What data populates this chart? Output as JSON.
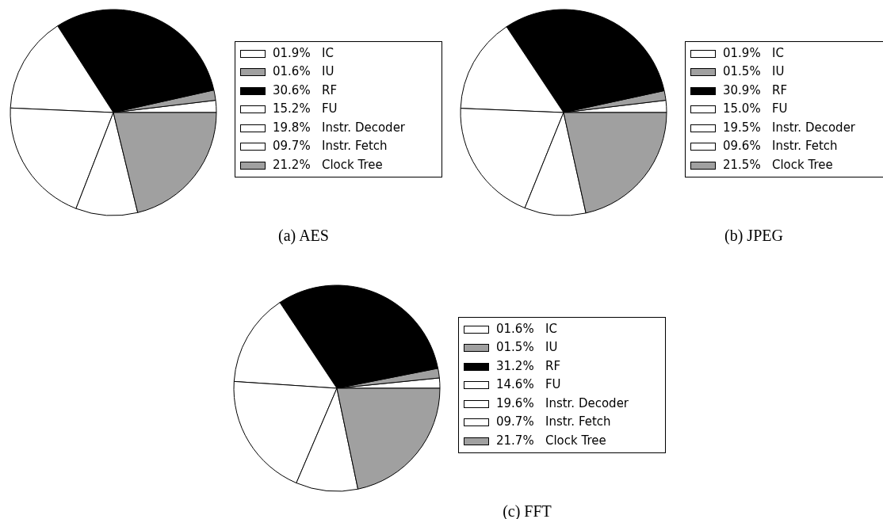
{
  "chart_data": [
    {
      "type": "pie",
      "title": "(a) AES",
      "categories": [
        "IC",
        "IU",
        "RF",
        "FU",
        "Instr. Decoder",
        "Instr. Fetch",
        "Clock Tree"
      ],
      "values": [
        1.9,
        1.6,
        30.6,
        15.2,
        19.8,
        9.7,
        21.2
      ],
      "value_labels": [
        "01.9%",
        "01.6%",
        "30.6%",
        "15.2%",
        "19.8%",
        "09.7%",
        "21.2%"
      ],
      "colors": [
        "#ffffff",
        "#a0a0a0",
        "#000000",
        "#ffffff",
        "#ffffff",
        "#ffffff",
        "#a0a0a0"
      ],
      "legend": "right"
    },
    {
      "type": "pie",
      "title": "(b) JPEG",
      "categories": [
        "IC",
        "IU",
        "RF",
        "FU",
        "Instr. Decoder",
        "Instr. Fetch",
        "Clock Tree"
      ],
      "values": [
        1.9,
        1.5,
        30.9,
        15.0,
        19.5,
        9.6,
        21.5
      ],
      "value_labels": [
        "01.9%",
        "01.5%",
        "30.9%",
        "15.0%",
        "19.5%",
        "09.6%",
        "21.5%"
      ],
      "colors": [
        "#ffffff",
        "#a0a0a0",
        "#000000",
        "#ffffff",
        "#ffffff",
        "#ffffff",
        "#a0a0a0"
      ],
      "legend": "right"
    },
    {
      "type": "pie",
      "title": "(c) FFT",
      "categories": [
        "IC",
        "IU",
        "RF",
        "FU",
        "Instr. Decoder",
        "Instr. Fetch",
        "Clock Tree"
      ],
      "values": [
        1.6,
        1.5,
        31.2,
        14.6,
        19.6,
        9.7,
        21.7
      ],
      "value_labels": [
        "01.6%",
        "01.5%",
        "31.2%",
        "14.6%",
        "19.6%",
        "09.7%",
        "21.7%"
      ],
      "colors": [
        "#ffffff",
        "#a0a0a0",
        "#000000",
        "#ffffff",
        "#ffffff",
        "#ffffff",
        "#a0a0a0"
      ],
      "legend": "right"
    }
  ]
}
